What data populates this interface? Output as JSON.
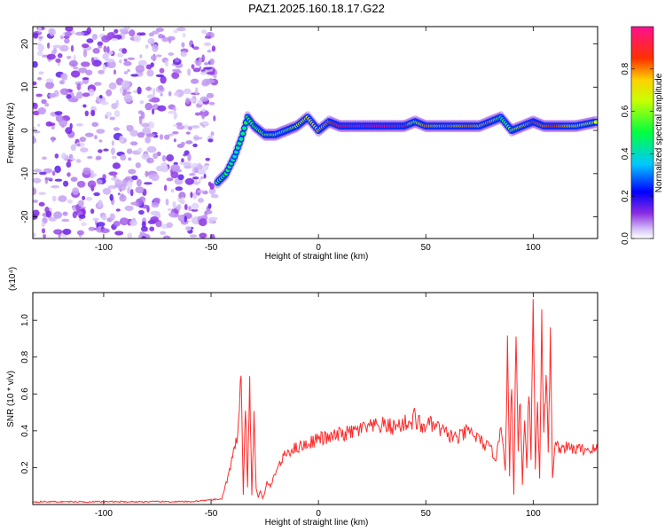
{
  "title": "PAZ1.2025.160.18.17.G22",
  "colors": {
    "snr_line": "#ff2a2a",
    "spectrogram_noise": "#8a2be2",
    "ridge_core": "#ff2020"
  },
  "chart_data": [
    {
      "type": "heatmap",
      "xlabel": "Height of straight line (km)",
      "ylabel": "Frequency (Hz)",
      "xlim": [
        -133,
        130
      ],
      "ylim": [
        -25,
        24
      ],
      "xticks": [
        -100,
        -50,
        0,
        50,
        100
      ],
      "yticks": [
        -20,
        -10,
        0,
        10,
        20
      ],
      "colorbar": {
        "label": "Normalized spectral amplitude",
        "range": [
          0,
          1
        ],
        "ticks": [
          "0.0",
          "0.2",
          "0.4",
          "0.6",
          "0.8"
        ],
        "colormap": "rainbow (violet-blue-cyan-green-yellow-red-magenta)"
      },
      "noise_region_x": [
        -133,
        -48
      ],
      "ridge": [
        {
          "x": -47,
          "y": -12,
          "amp": 0.55
        },
        {
          "x": -43,
          "y": -10,
          "amp": 0.5
        },
        {
          "x": -39,
          "y": -6,
          "amp": 0.4
        },
        {
          "x": -36,
          "y": -2,
          "amp": 0.45
        },
        {
          "x": -33,
          "y": 3,
          "amp": 0.5
        },
        {
          "x": -30,
          "y": 1,
          "amp": 0.55
        },
        {
          "x": -25,
          "y": -1,
          "amp": 0.6
        },
        {
          "x": -20,
          "y": -1,
          "amp": 0.65
        },
        {
          "x": -15,
          "y": 0,
          "amp": 0.6
        },
        {
          "x": -10,
          "y": 1,
          "amp": 0.65
        },
        {
          "x": -5,
          "y": 3,
          "amp": 0.7
        },
        {
          "x": 0,
          "y": 0,
          "amp": 0.75
        },
        {
          "x": 5,
          "y": 2,
          "amp": 0.8
        },
        {
          "x": 10,
          "y": 1,
          "amp": 0.95
        },
        {
          "x": 20,
          "y": 1,
          "amp": 1.0
        },
        {
          "x": 30,
          "y": 1,
          "amp": 1.0
        },
        {
          "x": 40,
          "y": 1,
          "amp": 0.95
        },
        {
          "x": 45,
          "y": 2,
          "amp": 0.6
        },
        {
          "x": 50,
          "y": 1,
          "amp": 0.8
        },
        {
          "x": 55,
          "y": 1,
          "amp": 0.75
        },
        {
          "x": 60,
          "y": 1,
          "amp": 0.8
        },
        {
          "x": 65,
          "y": 1,
          "amp": 0.75
        },
        {
          "x": 70,
          "y": 1,
          "amp": 0.8
        },
        {
          "x": 75,
          "y": 1,
          "amp": 0.75
        },
        {
          "x": 80,
          "y": 2,
          "amp": 0.8
        },
        {
          "x": 85,
          "y": 3,
          "amp": 0.5
        },
        {
          "x": 90,
          "y": 0,
          "amp": 0.6
        },
        {
          "x": 95,
          "y": 1,
          "amp": 0.7
        },
        {
          "x": 100,
          "y": 2,
          "amp": 0.85
        },
        {
          "x": 105,
          "y": 1,
          "amp": 0.8
        },
        {
          "x": 110,
          "y": 1,
          "amp": 0.85
        },
        {
          "x": 120,
          "y": 1,
          "amp": 0.7
        },
        {
          "x": 130,
          "y": 2,
          "amp": 0.65
        }
      ]
    },
    {
      "type": "line",
      "xlabel": "Height of straight line (km)",
      "ylabel": "SNR (10 * v/v)",
      "y_multiplier": "(x10⁴)",
      "xlim": [
        -133,
        130
      ],
      "ylim": [
        0,
        1.15
      ],
      "xticks": [
        -100,
        -50,
        0,
        50,
        100
      ],
      "yticks": [
        0.2,
        0.4,
        0.6,
        0.8,
        1.0
      ],
      "series": [
        {
          "color": "#ff2a2a",
          "x": [
            -133,
            -100,
            -60,
            -45,
            -41,
            -40,
            -38,
            -36,
            -35,
            -34,
            -33,
            -32,
            -31,
            -30,
            -29,
            -28,
            -27,
            -26,
            -25,
            -24,
            -22,
            -20,
            -18,
            -15,
            -12,
            -10,
            -5,
            0,
            5,
            10,
            15,
            20,
            25,
            30,
            35,
            40,
            44,
            45,
            46,
            47,
            48,
            50,
            55,
            60,
            65,
            70,
            75,
            80,
            83,
            85,
            87,
            88,
            89,
            90,
            91,
            92,
            93,
            94,
            95,
            96,
            97,
            98,
            99,
            100,
            101,
            102,
            103,
            104,
            105,
            106,
            107,
            108,
            109,
            110,
            112,
            115,
            120,
            125,
            130
          ],
          "y": [
            0.015,
            0.015,
            0.015,
            0.03,
            0.2,
            0.25,
            0.35,
            0.72,
            0.05,
            0.55,
            0.1,
            0.68,
            0.05,
            0.5,
            0.08,
            0.04,
            0.08,
            0.03,
            0.06,
            0.12,
            0.1,
            0.18,
            0.22,
            0.28,
            0.3,
            0.31,
            0.33,
            0.36,
            0.36,
            0.38,
            0.39,
            0.41,
            0.42,
            0.43,
            0.42,
            0.44,
            0.45,
            0.53,
            0.38,
            0.5,
            0.4,
            0.44,
            0.42,
            0.38,
            0.36,
            0.4,
            0.35,
            0.3,
            0.25,
            0.45,
            0.2,
            0.85,
            0.15,
            0.7,
            0.05,
            0.95,
            0.3,
            0.6,
            0.1,
            0.5,
            0.2,
            0.65,
            0.25,
            1.15,
            0.2,
            0.55,
            0.15,
            1.0,
            0.4,
            0.7,
            0.3,
            0.9,
            0.15,
            0.32,
            0.31,
            0.31,
            0.3,
            0.3,
            0.3
          ]
        }
      ]
    }
  ]
}
